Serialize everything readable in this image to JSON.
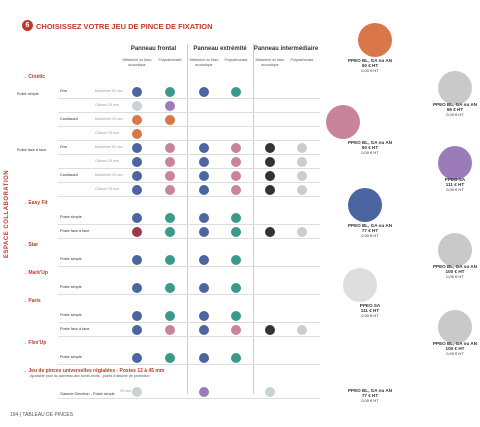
{
  "header": {
    "number": "6",
    "title": "CHOISISSEZ VOTRE JEU DE PINCE DE FIXATION"
  },
  "side_label": "ESPACE COLLABORATION",
  "columns": [
    {
      "name": "Panneau frontal",
      "sub": [
        "Mélaminé ou tissu acoustique",
        "Polycarbonate"
      ]
    },
    {
      "name": "Panneau extrémité",
      "sub": [
        "Mélaminé ou tissu acoustique",
        "Polycarbonate"
      ]
    },
    {
      "name": "Panneau intermédiaire",
      "sub": [
        "Mélaminé ou tissu acoustique",
        "Polycarbonate"
      ]
    }
  ],
  "sections": [
    {
      "title": "Cinétic",
      "rows": [
        {
          "group": "Poste simple",
          "type": "Fixe",
          "spec": "Mélaminé 25 mm",
          "cells": [
            "#4a65a0",
            "#3a9a8a",
            "#4a65a0",
            "#3a9a8a",
            null,
            null
          ]
        },
        {
          "spec": "Cloison 25 mm",
          "cells": [
            "#c9d3d3",
            "#9b7bb8",
            null,
            null,
            null,
            null
          ]
        },
        {
          "type": "Coulissant",
          "spec": "Mélaminé 25 mm",
          "cells": [
            "#d9764a",
            "#d9764a",
            null,
            null,
            null,
            null
          ]
        },
        {
          "spec": "Cloison 25 mm",
          "cells": [
            "#d9764a",
            null,
            null,
            null,
            null,
            null
          ]
        },
        {
          "group": "Poste face à face",
          "type": "Fixe",
          "spec": "Mélaminé 25 mm",
          "cells": [
            "#4a65a0",
            "#c8849a",
            "#4a65a0",
            "#c8849a",
            "#333333",
            "#cccccc"
          ]
        },
        {
          "spec": "Cloison 25 mm",
          "cells": [
            "#4a65a0",
            "#c8849a",
            "#4a65a0",
            "#c8849a",
            "#333333",
            "#cccccc"
          ]
        },
        {
          "type": "Coulissant",
          "spec": "Mélaminé 25 mm",
          "cells": [
            "#4a65a0",
            "#c8849a",
            "#4a65a0",
            "#c8849a",
            "#333333",
            "#cccccc"
          ]
        },
        {
          "spec": "Cloison 25 mm",
          "cells": [
            "#4a65a0",
            "#c8849a",
            "#4a65a0",
            "#c8849a",
            "#333333",
            "#cccccc"
          ]
        }
      ]
    },
    {
      "title": "Easy Fit",
      "rows": [
        {
          "type": "Poste simple",
          "cells": [
            "#4a65a0",
            "#3a9a8a",
            "#4a65a0",
            "#3a9a8a",
            null,
            null
          ]
        },
        {
          "type": "Poste face à face",
          "cells": [
            "#9a3a4a",
            "#3a9a8a",
            "#4a65a0",
            "#3a9a8a",
            "#333333",
            "#cccccc"
          ]
        }
      ]
    },
    {
      "title": "Star",
      "rows": [
        {
          "type": "Poste simple",
          "cells": [
            "#4a65a0",
            "#3a9a8a",
            "#4a65a0",
            "#3a9a8a",
            null,
            null
          ]
        }
      ]
    },
    {
      "title": "Mark'Up",
      "rows": [
        {
          "type": "Poste simple",
          "cells": [
            "#4a65a0",
            "#3a9a8a",
            "#4a65a0",
            "#3a9a8a",
            null,
            null
          ]
        }
      ]
    },
    {
      "title": "Paris",
      "rows": [
        {
          "type": "Poste simple",
          "cells": [
            "#4a65a0",
            "#3a9a8a",
            "#4a65a0",
            "#3a9a8a",
            null,
            null
          ]
        },
        {
          "type": "Poste face à face",
          "cells": [
            "#4a65a0",
            "#c8849a",
            "#4a65a0",
            "#c8849a",
            "#333333",
            "#cccccc"
          ]
        }
      ]
    },
    {
      "title": "Flex'Up",
      "rows": [
        {
          "type": "Poste simple",
          "cells": [
            "#4a65a0",
            "#3a9a8a",
            "#4a65a0",
            "#3a9a8a",
            null,
            null
          ]
        }
      ]
    },
    {
      "title": "Jeu de pinces universelles réglables - Postes 12 à 45 mm",
      "subtitle": "Ajustable pour du panneau aux bords droits - points d'attache de protection",
      "rows": [
        {
          "group": "Gamme Direction - Poste simple",
          "spec": "25 mm",
          "cells": [
            "#c9d3d3",
            null,
            "#9b7bb8",
            null,
            "#c9d3d3",
            null
          ]
        }
      ]
    }
  ],
  "products": [
    {
      "name": "PPEO BL, GA ou AN",
      "price": "60 € HT",
      "sub": "0,00 € HT",
      "color": "#d9764a"
    },
    {
      "name": "PPEO BL, GA ou AN",
      "price": "66 € HT",
      "sub": "0,00 € HT",
      "color": "#c9c9c9"
    },
    {
      "name": "PPEO BL, GA ou AN",
      "price": "60 € HT",
      "sub": "0,00 € HT",
      "color": "#c8849a"
    },
    {
      "name": "PPEO SA",
      "price": "111 € HT",
      "sub": "0,00 € HT",
      "color": "#9b7bb8"
    },
    {
      "name": "PPEO BL, GA ou AN",
      "price": "77 € HT",
      "sub": "0,00 € HT",
      "color": "#4a65a0"
    },
    {
      "name": "PPEO BL, GA ou AN",
      "price": "100 € HT",
      "sub": "0,00 € HT",
      "color": "#c9c9c9"
    },
    {
      "name": "PPEO SA",
      "price": "111 € HT",
      "sub": "0,00 € HT",
      "color": "#dddddd"
    },
    {
      "name": "PPEO BL, GA ou AN",
      "price": "100 € HT",
      "sub": "0,00 € HT",
      "color": "#c9c9c9"
    },
    {
      "name": "PPEO BL, GA ou AN",
      "price": "77 € HT",
      "sub": "0,00 € HT"
    }
  ],
  "footer": {
    "page": "194",
    "title": "TABLEAU DE PINCES"
  }
}
